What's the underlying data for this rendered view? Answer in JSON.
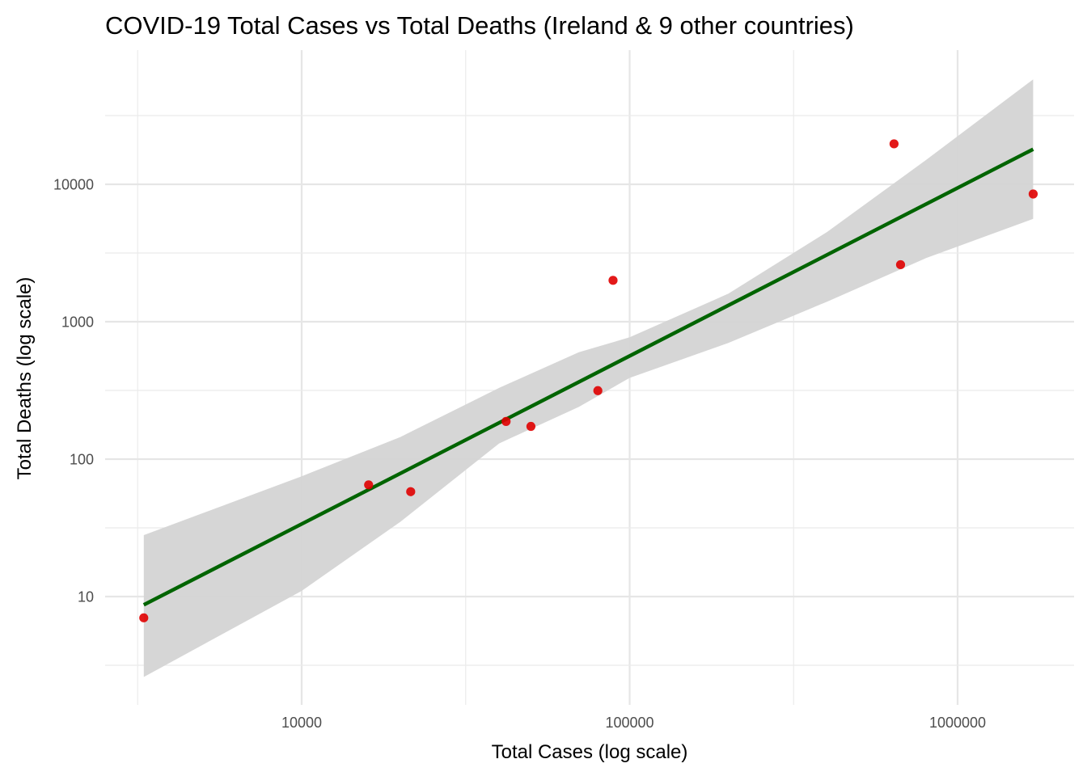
{
  "chart_data": {
    "type": "scatter",
    "title": "COVID-19 Total Cases vs Total Deaths (Ireland & 9 other countries)",
    "xlabel": "Total Cases (log scale)",
    "ylabel": "Total Deaths (log scale)",
    "x_scale": "log10",
    "y_scale": "log10",
    "xlim": [
      2500,
      2300000
    ],
    "ylim": [
      1.6,
      70000
    ],
    "x_ticks": [
      10000,
      100000,
      1000000
    ],
    "x_tick_labels": [
      "10000",
      "100000",
      "1000000"
    ],
    "y_ticks": [
      10,
      100,
      1000,
      10000
    ],
    "y_tick_labels": [
      "10",
      "100",
      "1000",
      "10000"
    ],
    "grid": true,
    "legend": "none",
    "point_color": "#e00000",
    "fit_color": "#006400",
    "band_color": "#d4d4d4",
    "points": [
      {
        "x": 3300,
        "y": 7
      },
      {
        "x": 16000,
        "y": 65
      },
      {
        "x": 21500,
        "y": 58
      },
      {
        "x": 42000,
        "y": 188
      },
      {
        "x": 50000,
        "y": 173
      },
      {
        "x": 80000,
        "y": 315
      },
      {
        "x": 89000,
        "y": 2000
      },
      {
        "x": 640000,
        "y": 19700
      },
      {
        "x": 670000,
        "y": 2600
      },
      {
        "x": 1700000,
        "y": 8500
      }
    ],
    "fit_line": {
      "x": [
        3300,
        1700000
      ],
      "y": [
        8.7,
        18000
      ]
    },
    "confidence_band": [
      {
        "x": 3300,
        "lower": 2.6,
        "upper": 28
      },
      {
        "x": 10000,
        "lower": 11,
        "upper": 75
      },
      {
        "x": 20000,
        "lower": 35,
        "upper": 145
      },
      {
        "x": 40000,
        "lower": 130,
        "upper": 330
      },
      {
        "x": 70000,
        "lower": 240,
        "upper": 600
      },
      {
        "x": 100000,
        "lower": 390,
        "upper": 770
      },
      {
        "x": 200000,
        "lower": 700,
        "upper": 1600
      },
      {
        "x": 400000,
        "lower": 1400,
        "upper": 4500
      },
      {
        "x": 800000,
        "lower": 2900,
        "upper": 15000
      },
      {
        "x": 1700000,
        "lower": 5600,
        "upper": 58000
      }
    ]
  }
}
